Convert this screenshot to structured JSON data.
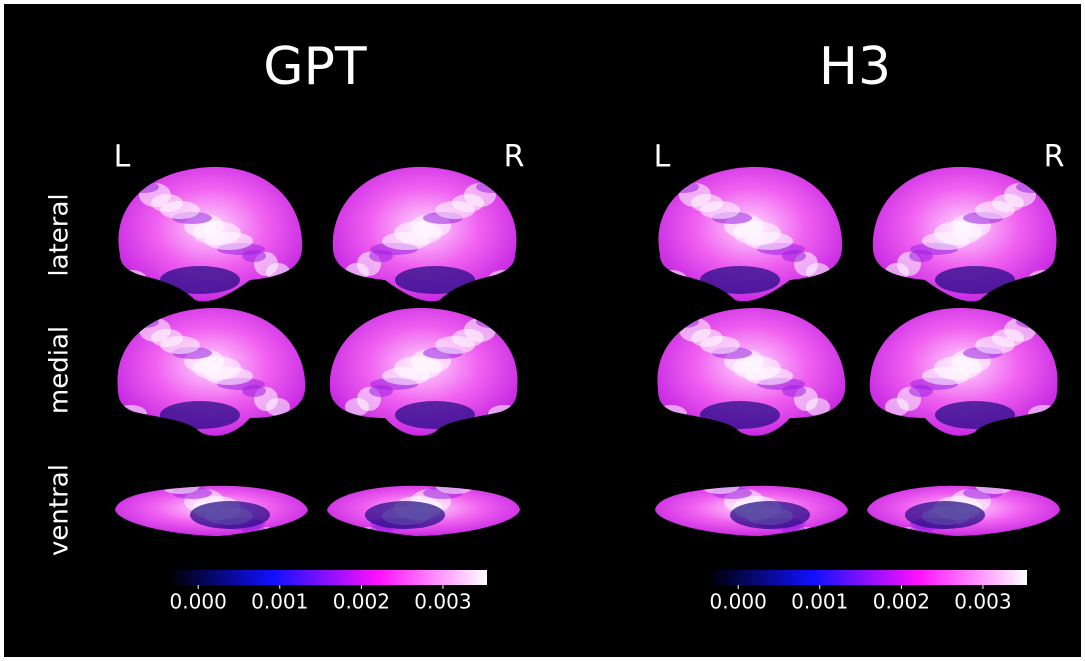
{
  "panels": [
    {
      "title": "GPT",
      "left": "L",
      "right": "R",
      "rows": [
        "lateral",
        "medial",
        "ventral"
      ],
      "colorbar": {
        "lim": [
          -0.00037,
          0.00354
        ],
        "ticks": [
          {
            "value": 0,
            "label": "0.000"
          },
          {
            "value": 0.001,
            "label": "0.001"
          },
          {
            "value": 0.002,
            "label": "0.002"
          },
          {
            "value": 0.003,
            "label": "0.003"
          }
        ]
      }
    },
    {
      "title": "H3",
      "left": "L",
      "right": "R",
      "rows": [
        "lateral",
        "medial",
        "ventral"
      ],
      "colorbar": {
        "lim": [
          -0.00037,
          0.00354
        ],
        "ticks": [
          {
            "value": 0,
            "label": "0.000"
          },
          {
            "value": 0.001,
            "label": "0.001"
          },
          {
            "value": 0.002,
            "label": "0.002"
          },
          {
            "value": 0.003,
            "label": "0.003"
          }
        ]
      }
    }
  ]
}
